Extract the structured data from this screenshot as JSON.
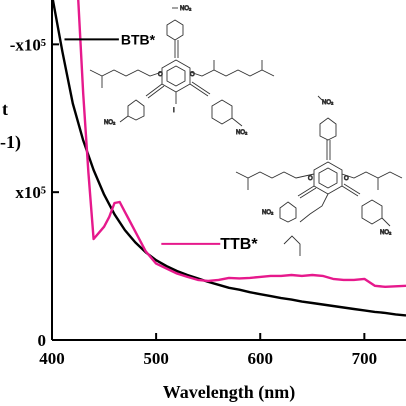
{
  "chart_data": {
    "type": "line",
    "title": "",
    "xlabel": "Wavelength (nm)",
    "ylabel_fragment": "t",
    "ylabel_unit_fragment": "-1)",
    "xlim": [
      400,
      740
    ],
    "ylim": [
      0,
      6.9
    ],
    "x_ticks": [
      400,
      500,
      600,
      700
    ],
    "y_ticks": [
      {
        "value": 0,
        "label": "0"
      },
      {
        "value": 3,
        "label": "x10⁵"
      },
      {
        "value": 6,
        "label": "-x10⁵"
      }
    ],
    "series": [
      {
        "name": "BTB*",
        "color": "#000000",
        "x": [
          400,
          410,
          420,
          430,
          440,
          450,
          460,
          470,
          480,
          490,
          500,
          510,
          520,
          530,
          540,
          550,
          560,
          570,
          580,
          590,
          600,
          610,
          620,
          630,
          640,
          650,
          660,
          670,
          680,
          690,
          700,
          710,
          720,
          730,
          740
        ],
        "y": [
          7.0,
          5.85,
          4.8,
          4.05,
          3.45,
          2.95,
          2.55,
          2.23,
          1.98,
          1.78,
          1.62,
          1.5,
          1.4,
          1.32,
          1.25,
          1.18,
          1.12,
          1.06,
          1.02,
          0.97,
          0.93,
          0.89,
          0.85,
          0.82,
          0.78,
          0.75,
          0.72,
          0.69,
          0.66,
          0.63,
          0.6,
          0.57,
          0.55,
          0.52,
          0.5
        ]
      },
      {
        "name": "TTB*",
        "color": "#e6198c",
        "x": [
          425,
          430,
          435,
          440,
          450,
          455,
          460,
          465,
          470,
          480,
          490,
          500,
          510,
          520,
          530,
          540,
          550,
          560,
          570,
          580,
          590,
          600,
          610,
          620,
          630,
          640,
          650,
          660,
          670,
          680,
          690,
          700,
          710,
          720,
          730,
          740
        ],
        "y": [
          7.0,
          5.0,
          3.4,
          2.05,
          2.3,
          2.5,
          2.78,
          2.8,
          2.6,
          2.2,
          1.8,
          1.55,
          1.45,
          1.35,
          1.28,
          1.22,
          1.2,
          1.22,
          1.26,
          1.25,
          1.26,
          1.28,
          1.3,
          1.3,
          1.32,
          1.3,
          1.32,
          1.3,
          1.24,
          1.22,
          1.22,
          1.24,
          1.1,
          1.08,
          1.09,
          1.1
        ]
      }
    ],
    "annotations": [
      {
        "text": "BTB*",
        "series": "BTB*",
        "x": 470,
        "y": 6.1
      },
      {
        "text": "TTB*",
        "series": "TTB*",
        "x": 600,
        "y": 2.05
      }
    ]
  },
  "structure_labels": {
    "nitro": "NO₂",
    "oxygen": "O",
    "iodine": "I"
  }
}
